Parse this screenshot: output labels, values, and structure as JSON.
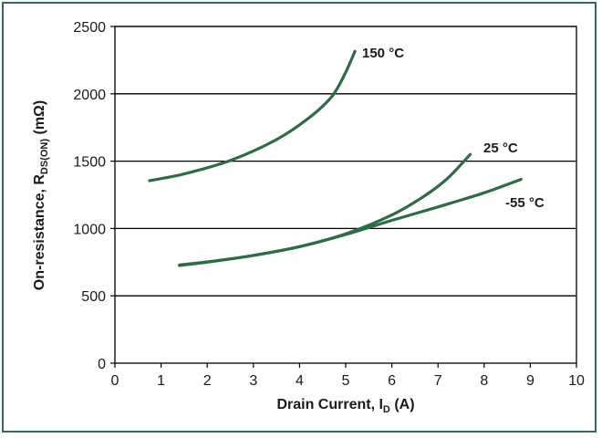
{
  "chart_data": {
    "type": "line",
    "title": "",
    "xlabel": {
      "main": "Drain Current, I",
      "sub": "D",
      "tail": " (A)"
    },
    "ylabel": {
      "main": "On-resistance, R",
      "sub": "DS(ON)",
      "tail": " (mΩ)"
    },
    "xlim": [
      0,
      10
    ],
    "ylim": [
      0,
      2500
    ],
    "xticks": [
      0,
      1,
      2,
      3,
      4,
      5,
      6,
      7,
      8,
      9,
      10
    ],
    "yticks": [
      0,
      500,
      1000,
      1500,
      2000,
      2500
    ],
    "grid": "horizontal",
    "line_color": "#2f6b45",
    "frame_color": "#2f6f4f",
    "series": [
      {
        "name": "150 °C",
        "points": [
          [
            0.75,
            1355
          ],
          [
            1.5,
            1405
          ],
          [
            2.5,
            1505
          ],
          [
            3.5,
            1660
          ],
          [
            4.2,
            1820
          ],
          [
            4.7,
            1980
          ],
          [
            5.0,
            2160
          ],
          [
            5.2,
            2315
          ]
        ]
      },
      {
        "name": "25 °C",
        "points": [
          [
            1.4,
            730
          ],
          [
            2.0,
            752
          ],
          [
            3.0,
            800
          ],
          [
            4.0,
            865
          ],
          [
            5.0,
            960
          ],
          [
            6.0,
            1100
          ],
          [
            6.7,
            1240
          ],
          [
            7.2,
            1370
          ],
          [
            7.7,
            1550
          ]
        ]
      },
      {
        "name": "-55 °C",
        "points": [
          [
            1.4,
            725
          ],
          [
            2.0,
            750
          ],
          [
            3.0,
            800
          ],
          [
            4.0,
            865
          ],
          [
            5.0,
            955
          ],
          [
            6.0,
            1060
          ],
          [
            7.0,
            1160
          ],
          [
            8.0,
            1265
          ],
          [
            8.8,
            1365
          ]
        ]
      }
    ]
  }
}
